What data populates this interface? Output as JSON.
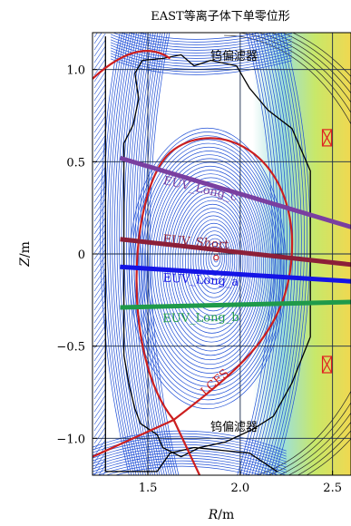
{
  "title": "EAST等离子体下单零位形",
  "xlabel": {
    "sym": "R",
    "unit": "/m"
  },
  "ylabel": {
    "sym": "Z",
    "unit": "/m"
  },
  "annotations": {
    "divertor_top": "钨偏滤器",
    "divertor_bottom": "钨偏滤器",
    "lcfs": "LCFS"
  },
  "colors": {
    "separatrix": "#cc1f1f",
    "flux_contours": "#1f4fd6",
    "vessel": "#000000",
    "euv_long_c": "#7a3fa0",
    "euv_short": "#8c1f38",
    "euv_long_a": "#1414e6",
    "euv_long_b": "#1f9a4a"
  },
  "chart_data": {
    "type": "diagram",
    "xlim": [
      1.2,
      2.6
    ],
    "ylim": [
      -1.2,
      1.2
    ],
    "xticks": [
      "1.5",
      "2.0",
      "2.5"
    ],
    "xtick_values": [
      1.5,
      2.0,
      2.5
    ],
    "yticks": [
      "1.0",
      "0.5",
      "0",
      "−0.5",
      "−1.0"
    ],
    "ytick_values": [
      1.0,
      0.5,
      0,
      -0.5,
      -1.0
    ],
    "grid": true,
    "magnetic_axis": {
      "R": 1.87,
      "Z": -0.02
    },
    "x_point": {
      "R": 1.62,
      "Z": -0.92
    },
    "lines_of_sight": [
      {
        "name": "EUV_Long_c",
        "label": "EUV_Long_c",
        "R": [
          1.35,
          2.62
        ],
        "Z": [
          0.52,
          0.14
        ]
      },
      {
        "name": "EUV_Short",
        "label": "EUV_Short",
        "R": [
          1.35,
          2.62
        ],
        "Z": [
          0.08,
          -0.06
        ]
      },
      {
        "name": "EUV_Long_a",
        "label": "EUV_Long_a",
        "R": [
          1.35,
          2.62
        ],
        "Z": [
          -0.07,
          -0.15
        ]
      },
      {
        "name": "EUV_Long_b",
        "label": "EUV_Long_b",
        "R": [
          1.35,
          2.62
        ],
        "Z": [
          -0.29,
          -0.26
        ]
      }
    ]
  }
}
